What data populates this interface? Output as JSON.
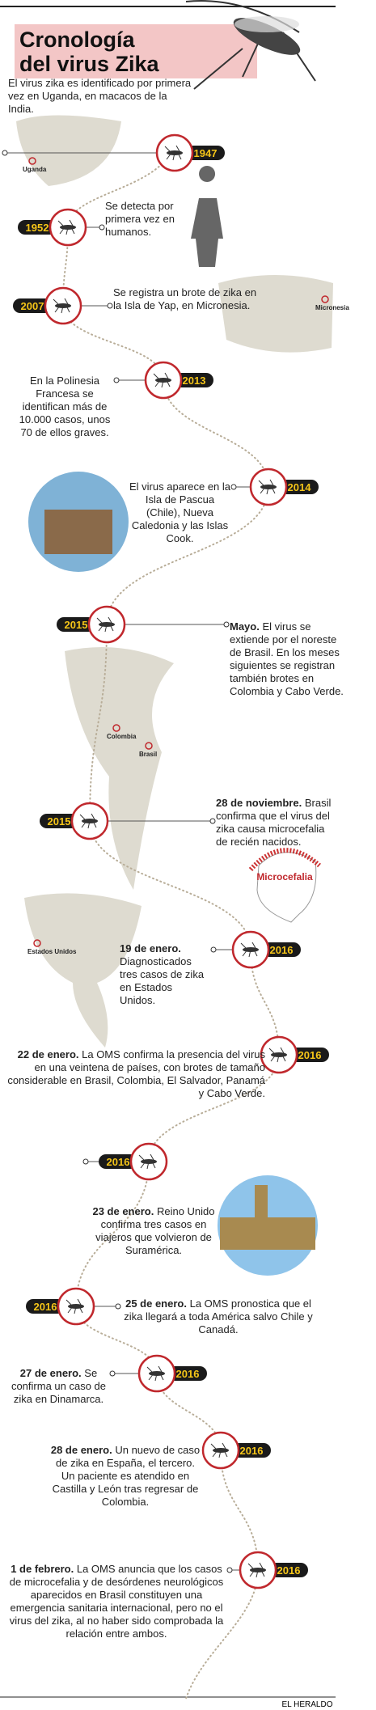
{
  "title": [
    "Cronología",
    "del virus Zika"
  ],
  "events": [
    {
      "year": "1947",
      "text": "El virus zika es identificado por primera vez en Uganda, en macacos de la India."
    },
    {
      "year": "1952",
      "text": "Se detecta por primera vez en humanos."
    },
    {
      "year": "2007",
      "text": "Se registra un brote de zika en la Isla de Yap, en Micronesia."
    },
    {
      "year": "2013",
      "text": "En la Polinesia Francesa se identifican más de 10.000 casos, unos 70 de ellos graves."
    },
    {
      "year": "2014",
      "text": "El virus aparece en la Isla de Pascua (Chile), Nueva Caledonia y las Islas Cook."
    },
    {
      "year": "2015",
      "bold": "Mayo.",
      "text": "El virus se extiende por el noreste de Brasil. En los meses siguientes se registran también brotes en Colombia y Cabo Verde."
    },
    {
      "year": "2015",
      "bold": "28 de noviembre.",
      "text": "Brasil confirma que el virus del zika causa microcefalia de recién nacidos."
    },
    {
      "year": "2016",
      "bold": "19 de enero.",
      "text": "Diagnosticados tres casos de zika en Estados Unidos."
    },
    {
      "year": "2016",
      "bold": "22 de enero.",
      "text": "La OMS confirma la presencia del virus en una veintena de países, con brotes de tamaño considerable en Brasil, Colombia, El Salvador, Panamá y Cabo Verde."
    },
    {
      "year": "2016",
      "bold": "23 de enero.",
      "text": "Reino Unido confirma tres casos en viajeros que volvieron de Suramérica."
    },
    {
      "year": "2016",
      "bold": "25 de enero.",
      "text": "La OMS pronostica que el zika llegará a toda América salvo Chile y Canadá."
    },
    {
      "year": "2016",
      "bold": "27 de enero.",
      "text": "Se confirma un caso de zika en Dinamarca."
    },
    {
      "year": "2016",
      "bold": "28 de enero.",
      "text": "Un nuevo de caso de zika en España, el tercero. Un paciente es atendido en Castilla y León tras regresar de Colombia."
    },
    {
      "year": "2016",
      "bold": "1 de febrero.",
      "text": "La OMS anuncia que los casos de microcefalia y de desórdenes neurológicos aparecidos en Brasil constituyen una emergencia sanitaria internacional, pero no el virus del zika, al no haber sido comprobada la relación entre ambos."
    }
  ],
  "map_labels": [
    "Uganda",
    "Micronesia",
    "Colombia",
    "Brasil",
    "Estados Unidos"
  ],
  "microcefalia": "Microcefalia",
  "footer": "EL HERALDO"
}
